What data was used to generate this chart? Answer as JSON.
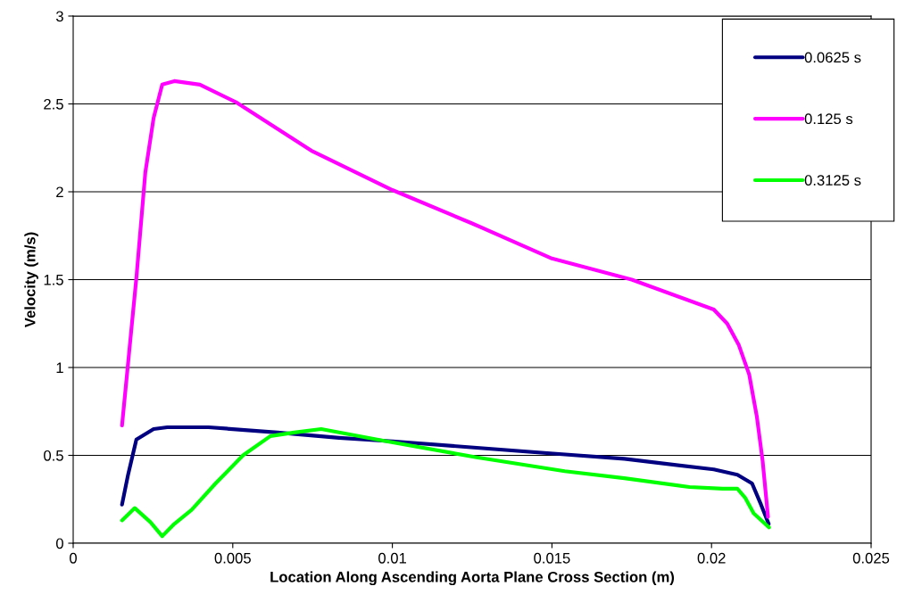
{
  "chart_data": {
    "type": "line",
    "xlabel": "Location Along Ascending Aorta Plane Cross Section (m)",
    "ylabel": "Velocity (m/s)",
    "xlim": [
      0,
      0.025
    ],
    "xticks": [
      0,
      0.005,
      0.01,
      0.015,
      0.02,
      0.025
    ],
    "ylim": [
      0,
      3
    ],
    "yticks": [
      0,
      0.5,
      1,
      1.5,
      2,
      2.5,
      3
    ],
    "grid": "y",
    "legend": "top right",
    "marker": "none",
    "line_style": "solid",
    "series": [
      {
        "name": "0.0625 s",
        "color": "#000080",
        "x": [
          0.00153,
          0.00172,
          0.00198,
          0.00252,
          0.00295,
          0.00424,
          0.0064,
          0.00833,
          0.01,
          0.01504,
          0.01727,
          0.02007,
          0.02081,
          0.02127,
          0.02155,
          0.02179
        ],
        "values": [
          0.22,
          0.39,
          0.59,
          0.65,
          0.66,
          0.66,
          0.63,
          0.6,
          0.58,
          0.51,
          0.48,
          0.42,
          0.39,
          0.34,
          0.22,
          0.11
        ]
      },
      {
        "name": "0.125 s",
        "color": "#ff00ff",
        "x": [
          0.00153,
          0.00198,
          0.00226,
          0.00252,
          0.00279,
          0.00317,
          0.00397,
          0.0051,
          0.0075,
          0.01,
          0.0125,
          0.015,
          0.0175,
          0.02007,
          0.02049,
          0.02085,
          0.02118,
          0.02142,
          0.0216,
          0.02177
        ],
        "values": [
          0.67,
          1.51,
          2.11,
          2.42,
          2.61,
          2.63,
          2.61,
          2.51,
          2.23,
          2.01,
          1.82,
          1.62,
          1.5,
          1.33,
          1.25,
          1.13,
          0.96,
          0.72,
          0.47,
          0.15
        ]
      },
      {
        "name": "0.3125 s",
        "color": "#00ff00",
        "x": [
          0.00153,
          0.00193,
          0.00242,
          0.00279,
          0.00317,
          0.00371,
          0.00446,
          0.00532,
          0.00618,
          0.00693,
          0.00777,
          0.00982,
          0.0126,
          0.0154,
          0.01727,
          0.01931,
          0.02035,
          0.02081,
          0.02105,
          0.02132,
          0.0218
        ],
        "values": [
          0.13,
          0.2,
          0.12,
          0.04,
          0.11,
          0.19,
          0.34,
          0.5,
          0.61,
          0.63,
          0.65,
          0.58,
          0.49,
          0.41,
          0.37,
          0.32,
          0.31,
          0.31,
          0.26,
          0.17,
          0.09
        ]
      }
    ]
  }
}
